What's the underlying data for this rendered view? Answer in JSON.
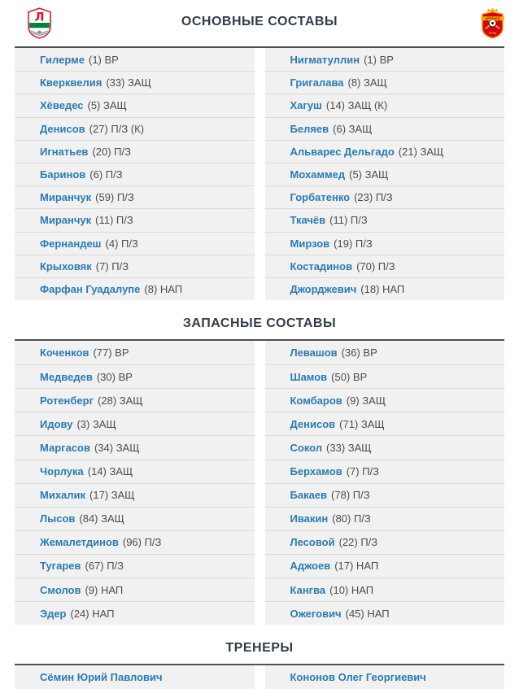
{
  "colors": {
    "player_link": "#2b7bb3",
    "meta_text": "#4d4d4d",
    "row_bg": "#f1f1f2",
    "row_divider": "#d9d9d9",
    "table_top_border": "#4f4f4f",
    "title_text": "#333d47",
    "home_crest_red": "#d7182a",
    "home_crest_green": "#00833e",
    "away_crest_red": "#d6001c",
    "away_crest_gold": "#f5a800"
  },
  "captain_mark": "(К)",
  "header": {
    "home_logo_icon": "lokomotiv-moscow-crest",
    "away_logo_icon": "arsenal-tula-crest"
  },
  "sections": {
    "main": {
      "title": "ОСНОВНЫЕ СОСТАВЫ",
      "left": [
        {
          "name": "Гилерме",
          "number": 1,
          "position": "ВР"
        },
        {
          "name": "Кверквелия",
          "number": 33,
          "position": "ЗАЩ"
        },
        {
          "name": "Хёведес",
          "number": 5,
          "position": "ЗАЩ"
        },
        {
          "name": "Денисов",
          "number": 27,
          "position": "П/З",
          "captain": true
        },
        {
          "name": "Игнатьев",
          "number": 20,
          "position": "П/З"
        },
        {
          "name": "Баринов",
          "number": 6,
          "position": "П/З"
        },
        {
          "name": "Миранчук",
          "number": 59,
          "position": "П/З"
        },
        {
          "name": "Миранчук",
          "number": 11,
          "position": "П/З"
        },
        {
          "name": "Фернандеш",
          "number": 4,
          "position": "П/З"
        },
        {
          "name": "Крыховяк",
          "number": 7,
          "position": "П/З"
        },
        {
          "name": "Фарфан Гуадалупе",
          "number": 8,
          "position": "НАП"
        }
      ],
      "right": [
        {
          "name": "Нигматуллин",
          "number": 1,
          "position": "ВР"
        },
        {
          "name": "Григалава",
          "number": 8,
          "position": "ЗАЩ"
        },
        {
          "name": "Хагуш",
          "number": 14,
          "position": "ЗАЩ",
          "captain": true
        },
        {
          "name": "Беляев",
          "number": 6,
          "position": "ЗАЩ"
        },
        {
          "name": "Альварес Дельгадо",
          "number": 21,
          "position": "ЗАЩ"
        },
        {
          "name": "Мохаммед",
          "number": 5,
          "position": "ЗАЩ"
        },
        {
          "name": "Горбатенко",
          "number": 23,
          "position": "П/З"
        },
        {
          "name": "Ткачёв",
          "number": 11,
          "position": "П/З"
        },
        {
          "name": "Мирзов",
          "number": 19,
          "position": "П/З"
        },
        {
          "name": "Костадинов",
          "number": 70,
          "position": "П/З"
        },
        {
          "name": "Джорджевич",
          "number": 18,
          "position": "НАП"
        }
      ]
    },
    "subs": {
      "title": "ЗАПАСНЫЕ СОСТАВЫ",
      "left": [
        {
          "name": "Коченков",
          "number": 77,
          "position": "ВР"
        },
        {
          "name": "Медведев",
          "number": 30,
          "position": "ВР"
        },
        {
          "name": "Ротенберг",
          "number": 28,
          "position": "ЗАЩ"
        },
        {
          "name": "Идову",
          "number": 3,
          "position": "ЗАЩ"
        },
        {
          "name": "Маргасов",
          "number": 34,
          "position": "ЗАЩ"
        },
        {
          "name": "Чорлука",
          "number": 14,
          "position": "ЗАЩ"
        },
        {
          "name": "Михалик",
          "number": 17,
          "position": "ЗАЩ"
        },
        {
          "name": "Лысов",
          "number": 84,
          "position": "ЗАЩ"
        },
        {
          "name": "Жемалетдинов",
          "number": 96,
          "position": "П/З"
        },
        {
          "name": "Тугарев",
          "number": 67,
          "position": "П/З"
        },
        {
          "name": "Смолов",
          "number": 9,
          "position": "НАП"
        },
        {
          "name": "Эдер",
          "number": 24,
          "position": "НАП"
        }
      ],
      "right": [
        {
          "name": "Левашов",
          "number": 36,
          "position": "ВР"
        },
        {
          "name": "Шамов",
          "number": 50,
          "position": "ВР"
        },
        {
          "name": "Комбаров",
          "number": 9,
          "position": "ЗАЩ"
        },
        {
          "name": "Денисов",
          "number": 71,
          "position": "ЗАЩ"
        },
        {
          "name": "Сокол",
          "number": 33,
          "position": "ЗАЩ"
        },
        {
          "name": "Берхамов",
          "number": 7,
          "position": "П/З"
        },
        {
          "name": "Бакаев",
          "number": 78,
          "position": "П/З"
        },
        {
          "name": "Ивакин",
          "number": 80,
          "position": "П/З"
        },
        {
          "name": "Лесовой",
          "number": 22,
          "position": "П/З"
        },
        {
          "name": "Аджоев",
          "number": 17,
          "position": "НАП"
        },
        {
          "name": "Кангва",
          "number": 10,
          "position": "НАП"
        },
        {
          "name": "Ожегович",
          "number": 45,
          "position": "НАП"
        }
      ]
    },
    "coaches": {
      "title": "ТРЕНЕРЫ",
      "left": "Сёмин Юрий Павлович",
      "right": "Кононов Олег Георгиевич"
    }
  }
}
